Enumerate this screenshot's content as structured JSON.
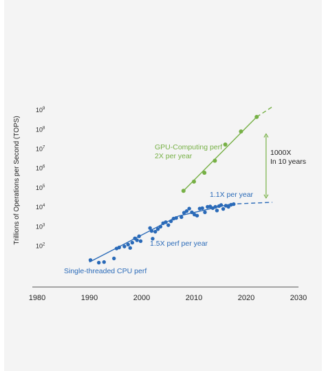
{
  "chart_data": {
    "type": "scatter",
    "title": "",
    "xlabel": "",
    "ylabel": "Trillions of Operations per Second (TOPS)",
    "x_ticks": [
      "1980",
      "1990",
      "2000",
      "2010",
      "2020",
      "2030"
    ],
    "xlim": [
      1980,
      2030
    ],
    "y_scale": "log",
    "y_ticks": [
      {
        "base": "10",
        "exp": "2",
        "value": 100
      },
      {
        "base": "10",
        "exp": "3",
        "value": 1000
      },
      {
        "base": "10",
        "exp": "4",
        "value": 10000
      },
      {
        "base": "10",
        "exp": "5",
        "value": 100000
      },
      {
        "base": "10",
        "exp": "6",
        "value": 1000000
      },
      {
        "base": "10",
        "exp": "7",
        "value": 10000000
      },
      {
        "base": "10",
        "exp": "8",
        "value": 100000000
      },
      {
        "base": "10",
        "exp": "9",
        "value": 1000000000
      }
    ],
    "ylim_exp": [
      0.9,
      9.4
    ],
    "grid": false,
    "series": [
      {
        "name": "Single-threaded CPU perf",
        "color": "#2a6ab8",
        "points": [
          [
            1990.2,
            19
          ],
          [
            1991.8,
            14
          ],
          [
            1992.8,
            15
          ],
          [
            1994.7,
            23
          ],
          [
            1995.2,
            75
          ],
          [
            1995.7,
            85
          ],
          [
            1996.7,
            95
          ],
          [
            1997.4,
            120
          ],
          [
            1997.8,
            80
          ],
          [
            1998.2,
            150
          ],
          [
            1998.7,
            250
          ],
          [
            1999.1,
            200
          ],
          [
            1999.5,
            320
          ],
          [
            1999.8,
            180
          ],
          [
            2001.6,
            850
          ],
          [
            2001.9,
            600
          ],
          [
            2002.1,
            240
          ],
          [
            2002.6,
            550
          ],
          [
            2003.1,
            750
          ],
          [
            2003.6,
            1000
          ],
          [
            2004.1,
            1500
          ],
          [
            2004.6,
            1700
          ],
          [
            2005.1,
            1200
          ],
          [
            2005.6,
            1900
          ],
          [
            2006.1,
            2600
          ],
          [
            2006.6,
            2800
          ],
          [
            2007.6,
            3100
          ],
          [
            2008.1,
            5200
          ],
          [
            2008.6,
            6300
          ],
          [
            2009.1,
            8500
          ],
          [
            2009.6,
            5500
          ],
          [
            2010.1,
            4200
          ],
          [
            2010.6,
            3700
          ],
          [
            2011.1,
            8500
          ],
          [
            2011.6,
            9000
          ],
          [
            2012.1,
            5500
          ],
          [
            2012.6,
            10500
          ],
          [
            2013.1,
            11000
          ],
          [
            2013.6,
            9000
          ],
          [
            2014.1,
            10500
          ],
          [
            2014.4,
            6800
          ],
          [
            2014.8,
            11500
          ],
          [
            2015.2,
            13000
          ],
          [
            2015.6,
            8200
          ],
          [
            2016.1,
            12000
          ],
          [
            2016.6,
            10500
          ],
          [
            2017.1,
            13500
          ],
          [
            2017.6,
            14500
          ]
        ]
      },
      {
        "name": "GPU-Computing perf",
        "color": "#76b045",
        "points": [
          [
            2008,
            70000
          ],
          [
            2010,
            210000
          ],
          [
            2012,
            600000
          ],
          [
            2014,
            2500000
          ],
          [
            2016,
            17000000
          ],
          [
            2019,
            80000000
          ],
          [
            2022,
            450000000
          ]
        ]
      }
    ],
    "trend_lines": [
      {
        "name": "1.5X perf per year",
        "color": "#2a6ab8",
        "style": "solid",
        "from": [
          1990,
          15
        ],
        "to": [
          2007,
          3500
        ]
      },
      {
        "name": "1.1X per year",
        "color": "#2a6ab8",
        "style": "solid",
        "from": [
          2007,
          3500
        ],
        "to": [
          2017,
          14500
        ]
      },
      {
        "name": "1.1X per year projection",
        "color": "#2a6ab8",
        "style": "dashed",
        "from": [
          2017,
          14500
        ],
        "to": [
          2025,
          18000
        ]
      },
      {
        "name": "2X per year",
        "color": "#76b045",
        "style": "solid",
        "from": [
          2008,
          70000
        ],
        "to": [
          2022,
          450000000
        ]
      },
      {
        "name": "2X per year projection",
        "color": "#76b045",
        "style": "dashed",
        "from": [
          2022,
          450000000
        ],
        "to": [
          2025,
          1500000000
        ]
      }
    ],
    "gap_marker": {
      "year": 2023.8,
      "low": 30000,
      "high": 60000000,
      "color": "#76b045"
    },
    "annotations": {
      "gpu_line1": "GPU-Computing perf",
      "gpu_line2": "2X per year",
      "gap_line1": "1000X",
      "gap_line2": "In 10 years",
      "cpu_recent": "1.1X per year",
      "cpu_mid": "1.5X perf per year",
      "cpu_label": "Single-threaded CPU perf"
    }
  }
}
